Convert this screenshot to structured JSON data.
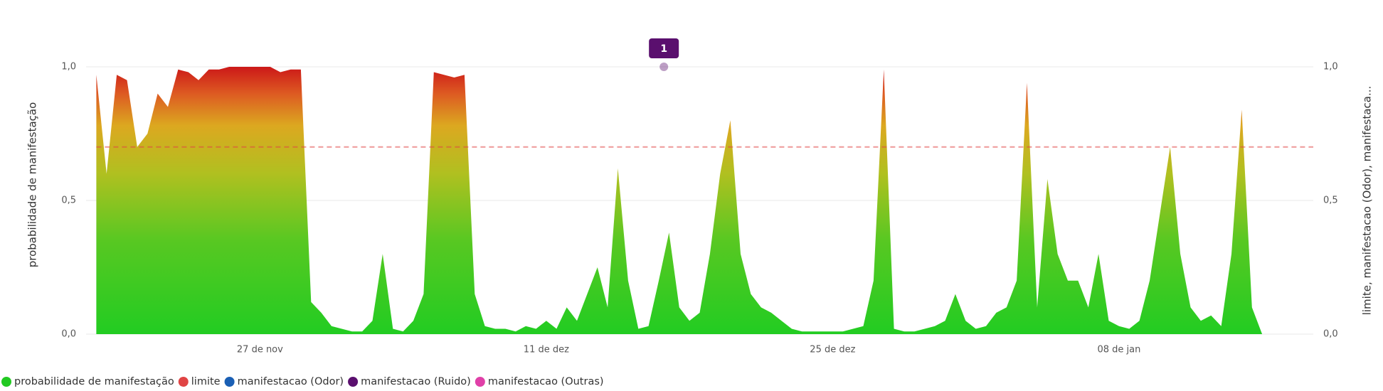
{
  "chart_data": {
    "type": "area",
    "y_label": "probabilidade de manifestação",
    "y2_label": "limite, manifestacao (Odor), manifestaca...",
    "xlim": [
      "11-18 12:00",
      "01-17 12:00"
    ],
    "xticks": [
      {
        "value": "11-27 00:00",
        "label": "27 de nov"
      },
      {
        "value": "12-11 00:00",
        "label": "11 de dez"
      },
      {
        "value": "12-25 00:00",
        "label": "25 de dez"
      },
      {
        "value": "01-08 00:00",
        "label": "08 de jan"
      }
    ],
    "ylim": [
      0,
      1
    ],
    "yticks": [
      {
        "value": 0,
        "label": "0,0"
      },
      {
        "value": 0.5,
        "label": "0,5"
      },
      {
        "value": 1,
        "label": "1,0"
      }
    ],
    "y2lim": [
      0,
      1
    ],
    "y2ticks": [
      {
        "value": 0,
        "label": "0,0"
      },
      {
        "value": 0.5,
        "label": "0,5"
      },
      {
        "value": 1,
        "label": "1,0"
      }
    ],
    "grid": true,
    "legend": "bottom-left",
    "x": [
      "11-19 00:00",
      "11-19 12:00",
      "11-20 00:00",
      "11-20 12:00",
      "11-21 00:00",
      "11-21 12:00",
      "11-22 00:00",
      "11-22 12:00",
      "11-23 00:00",
      "11-23 12:00",
      "11-24 00:00",
      "11-24 12:00",
      "11-25 00:00",
      "11-25 12:00",
      "11-26 00:00",
      "11-26 12:00",
      "11-27 00:00",
      "11-27 12:00",
      "11-28 00:00",
      "11-28 12:00",
      "11-29 00:00",
      "11-29 12:00",
      "11-30 00:00",
      "11-30 12:00",
      "12-01 00:00",
      "12-01 12:00",
      "12-02 00:00",
      "12-02 12:00",
      "12-03 00:00",
      "12-03 12:00",
      "12-04 00:00",
      "12-04 12:00",
      "12-05 00:00",
      "12-05 12:00",
      "12-06 00:00",
      "12-06 12:00",
      "12-07 00:00",
      "12-07 12:00",
      "12-08 00:00",
      "12-08 12:00",
      "12-09 00:00",
      "12-09 12:00",
      "12-10 00:00",
      "12-10 12:00",
      "12-11 00:00",
      "12-11 12:00",
      "12-12 00:00",
      "12-12 12:00",
      "12-13 00:00",
      "12-13 12:00",
      "12-14 00:00",
      "12-14 12:00",
      "12-15 00:00",
      "12-15 12:00",
      "12-16 00:00",
      "12-16 12:00",
      "12-17 00:00",
      "12-17 12:00",
      "12-18 00:00",
      "12-18 12:00",
      "12-19 00:00",
      "12-19 12:00",
      "12-20 00:00",
      "12-20 12:00",
      "12-21 00:00",
      "12-21 12:00",
      "12-22 00:00",
      "12-22 12:00",
      "12-23 00:00",
      "12-23 12:00",
      "12-24 00:00",
      "12-24 12:00",
      "12-25 00:00",
      "12-25 12:00",
      "12-26 00:00",
      "12-26 12:00",
      "12-27 00:00",
      "12-27 12:00",
      "12-28 00:00",
      "12-28 12:00",
      "12-29 00:00",
      "12-29 12:00",
      "12-30 00:00",
      "12-30 12:00",
      "12-31 00:00",
      "12-31 12:00",
      "01-01 00:00",
      "01-01 12:00",
      "01-02 00:00",
      "01-02 12:00",
      "01-03 00:00",
      "01-03 12:00",
      "01-04 00:00",
      "01-04 12:00",
      "01-05 00:00",
      "01-05 12:00",
      "01-06 00:00",
      "01-06 12:00",
      "01-07 00:00",
      "01-07 12:00",
      "01-08 00:00",
      "01-08 12:00",
      "01-09 00:00",
      "01-09 12:00",
      "01-10 00:00",
      "01-10 12:00",
      "01-11 00:00",
      "01-11 12:00",
      "01-12 00:00",
      "01-12 12:00",
      "01-13 00:00",
      "01-13 12:00",
      "01-14 00:00",
      "01-14 12:00",
      "01-15 00:00"
    ],
    "series": [
      {
        "name": "probabilidade de manifestação",
        "color": "#22c922",
        "values": [
          0.97,
          0.6,
          0.97,
          0.95,
          0.7,
          0.75,
          0.9,
          0.85,
          0.99,
          0.98,
          0.95,
          0.99,
          0.99,
          1.0,
          1.0,
          1.0,
          1.0,
          1.0,
          0.98,
          0.99,
          0.99,
          0.12,
          0.08,
          0.03,
          0.02,
          0.01,
          0.01,
          0.05,
          0.3,
          0.02,
          0.01,
          0.05,
          0.15,
          0.98,
          0.97,
          0.96,
          0.97,
          0.15,
          0.03,
          0.02,
          0.02,
          0.01,
          0.03,
          0.02,
          0.05,
          0.02,
          0.1,
          0.05,
          0.15,
          0.25,
          0.1,
          0.62,
          0.2,
          0.02,
          0.03,
          0.2,
          0.38,
          0.1,
          0.05,
          0.08,
          0.3,
          0.6,
          0.8,
          0.3,
          0.15,
          0.1,
          0.08,
          0.05,
          0.02,
          0.01,
          0.01,
          0.01,
          0.01,
          0.01,
          0.02,
          0.03,
          0.2,
          0.99,
          0.02,
          0.01,
          0.01,
          0.02,
          0.03,
          0.05,
          0.15,
          0.05,
          0.02,
          0.03,
          0.08,
          0.1,
          0.2,
          0.94,
          0.1,
          0.58,
          0.3,
          0.2,
          0.2,
          0.1,
          0.3,
          0.05,
          0.03,
          0.02,
          0.05,
          0.2,
          0.45,
          0.7,
          0.3,
          0.1,
          0.05,
          0.07,
          0.03,
          0.3,
          0.84,
          0.1,
          0
        ]
      },
      {
        "name": "limite",
        "color": "#e04444",
        "axis": "y2",
        "x": [
          "11-19 00:00",
          "01-17 12:00"
        ],
        "values": [
          0.7,
          0.7
        ]
      },
      {
        "name": "manifestacao (Odor)",
        "color": "#1a5fb4",
        "axis": "y2",
        "x": [],
        "values": []
      },
      {
        "name": "manifestacao (Ruido)",
        "color": "#5a0f6e",
        "axis": "y2",
        "x": [
          "12-16 18:00"
        ],
        "values": [
          1
        ]
      },
      {
        "name": "manifestacao (Outras)",
        "color": "#e040a8",
        "axis": "y2",
        "x": [],
        "values": []
      }
    ]
  }
}
